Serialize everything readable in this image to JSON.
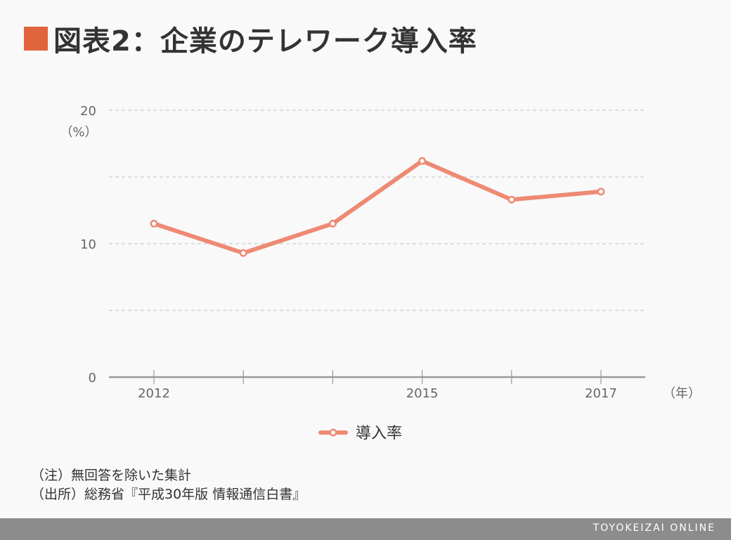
{
  "title": "図表2：企業のテレワーク導入率",
  "notes": {
    "line1": "（注）無回答を除いた集計",
    "line2": "（出所）総務省『平成30年版 情報通信白書』"
  },
  "footer_brand": "TOYOKEIZAI ONLINE",
  "colors": {
    "accent": "#e0643c",
    "line": "#ee8a73",
    "axis": "#999999",
    "grid": "#d6d6d6",
    "text": "#666666"
  },
  "chart_data": {
    "type": "line",
    "title": "",
    "xlabel": "",
    "ylabel": "",
    "y_unit_label": "（%）",
    "x_unit_label": "（年）",
    "ylim": [
      0,
      20
    ],
    "yticks": [
      0,
      10,
      20
    ],
    "grid": true,
    "gridlines": [
      5,
      10,
      15,
      20
    ],
    "legend_position": "bottom-center",
    "x": [
      2012,
      2013,
      2014,
      2015,
      2016,
      2017
    ],
    "xtick_labels": [
      "2012",
      "",
      "",
      "2015",
      "",
      "2017"
    ],
    "series": [
      {
        "name": "導入率",
        "values": [
          11.5,
          9.3,
          11.5,
          16.2,
          13.3,
          13.9
        ]
      }
    ]
  }
}
